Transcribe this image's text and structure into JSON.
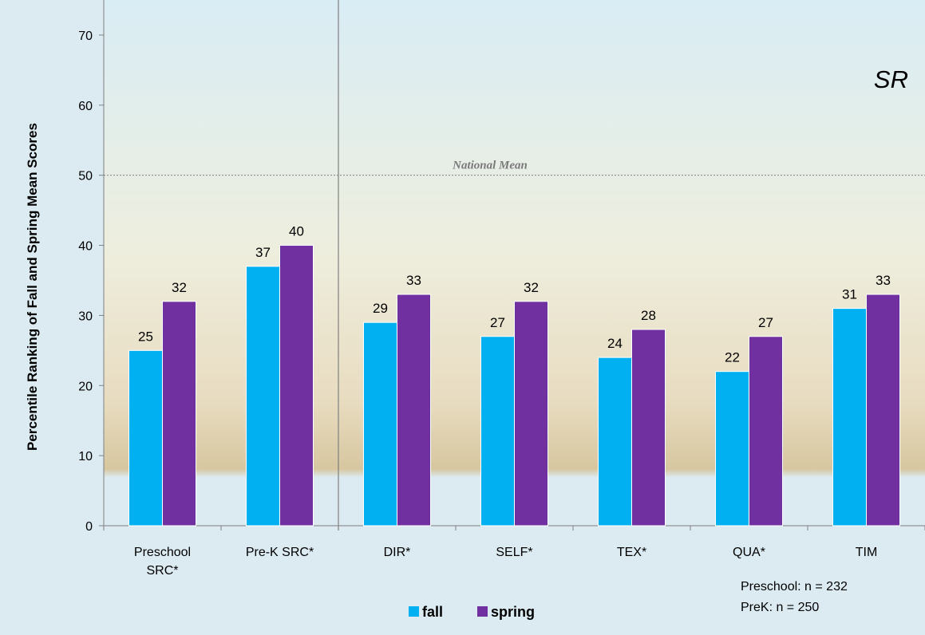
{
  "chart_data": {
    "type": "bar",
    "title": "",
    "xlabel": "",
    "ylabel": "Percentile Ranking of Fall and Spring Mean Scores",
    "ylim": [
      0,
      75
    ],
    "yticks": [
      0,
      10,
      20,
      30,
      40,
      50,
      60,
      70
    ],
    "grid": false,
    "legend_position": "bottom-center",
    "categories": [
      [
        "Preschool",
        "SRC*"
      ],
      [
        "Pre-K SRC*"
      ],
      [
        "DIR*"
      ],
      [
        "SELF*"
      ],
      [
        "TEX*"
      ],
      [
        "QUA*"
      ],
      [
        "TIM"
      ]
    ],
    "series": [
      {
        "name": "fall",
        "color": "#00b0f0",
        "values": [
          25,
          37,
          29,
          27,
          24,
          22,
          31
        ]
      },
      {
        "name": "spring",
        "color": "#7030a0",
        "values": [
          32,
          40,
          33,
          32,
          28,
          27,
          33
        ]
      }
    ],
    "reference_line": {
      "value": 50,
      "label": "National Mean",
      "style": "dotted"
    },
    "divider_after_category": 1,
    "corner_label": "SR",
    "notes": [
      "Preschool: n = 232",
      "PreK: n = 250"
    ]
  }
}
